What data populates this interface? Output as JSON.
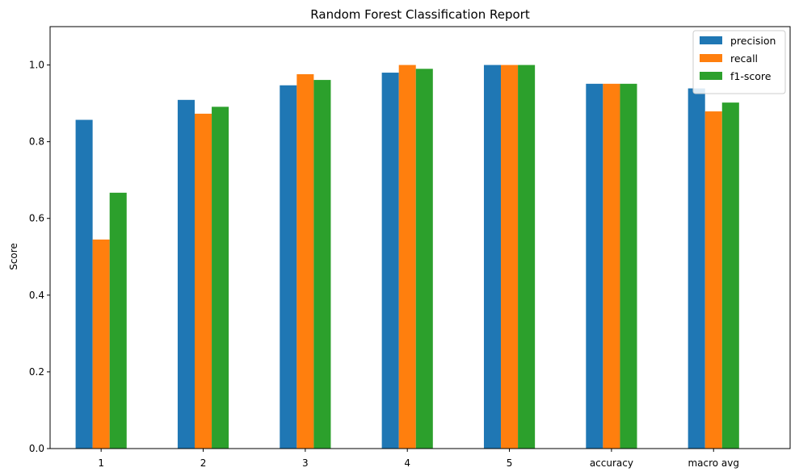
{
  "chart_data": {
    "type": "bar",
    "title": "Random Forest Classification Report",
    "xlabel": "",
    "ylabel": "Score",
    "ylim": [
      0,
      1.1
    ],
    "yticks": [
      0.0,
      0.2,
      0.4,
      0.6,
      0.8,
      1.0
    ],
    "ytick_labels": [
      "0.0",
      "0.2",
      "0.4",
      "0.6",
      "0.8",
      "1.0"
    ],
    "categories": [
      "1",
      "2",
      "3",
      "4",
      "5",
      "accuracy",
      "macro avg"
    ],
    "series": [
      {
        "name": "precision",
        "color": "#1f77b4",
        "values": [
          0.857,
          0.909,
          0.947,
          0.98,
          1.0,
          0.951,
          0.939
        ]
      },
      {
        "name": "recall",
        "color": "#ff7f0e",
        "values": [
          0.545,
          0.873,
          0.976,
          1.0,
          1.0,
          0.951,
          0.879
        ]
      },
      {
        "name": "f1-score",
        "color": "#2ca02c",
        "values": [
          0.667,
          0.891,
          0.961,
          0.99,
          1.0,
          0.951,
          0.902
        ]
      }
    ],
    "legend": "top-right",
    "grid": false
  }
}
